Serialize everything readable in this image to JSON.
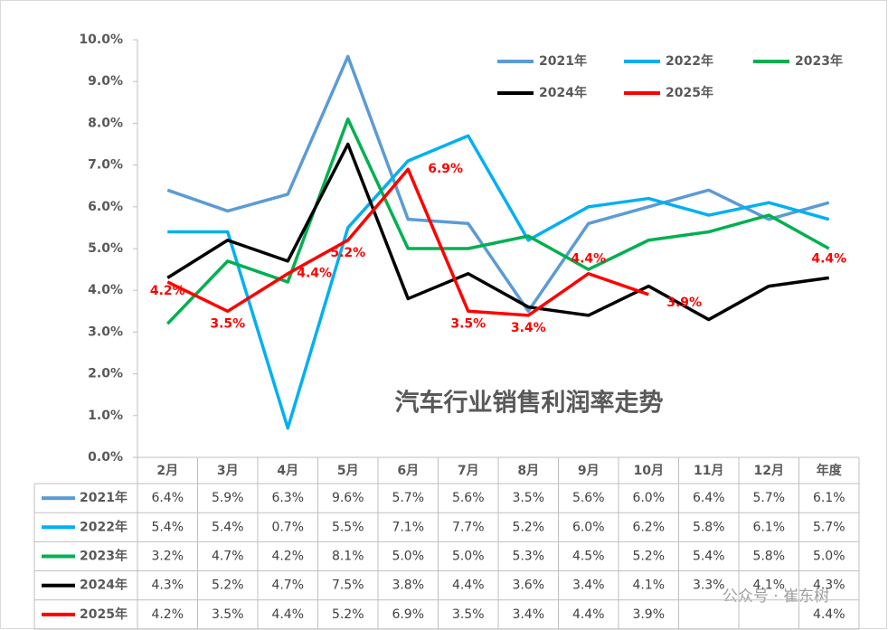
{
  "chart_data": {
    "type": "line",
    "title": "汽车行业销售利润率走势",
    "watermark": "公众号 · 崔东树",
    "categories": [
      "2月",
      "3月",
      "4月",
      "5月",
      "6月",
      "7月",
      "8月",
      "9月",
      "10月",
      "11月",
      "12月",
      "年度"
    ],
    "ylim": [
      0,
      10
    ],
    "yticks": [
      {
        "value": 0,
        "label": "0.0%"
      },
      {
        "value": 1,
        "label": "1.0%"
      },
      {
        "value": 2,
        "label": "2.0%"
      },
      {
        "value": 3,
        "label": "3.0%"
      },
      {
        "value": 4,
        "label": "4.0%"
      },
      {
        "value": 5,
        "label": "5.0%"
      },
      {
        "value": 6,
        "label": "6.0%"
      },
      {
        "value": 7,
        "label": "7.0%"
      },
      {
        "value": 8,
        "label": "8.0%"
      },
      {
        "value": 9,
        "label": "9.0%"
      },
      {
        "value": 10,
        "label": "10.0%"
      }
    ],
    "series": [
      {
        "name": "2021年",
        "color": "#5b9bd5",
        "values": [
          6.4,
          5.9,
          6.3,
          9.6,
          5.7,
          5.6,
          3.5,
          5.6,
          6.0,
          6.4,
          5.7,
          6.1
        ],
        "value_labels": [
          "6.4%",
          "5.9%",
          "6.3%",
          "9.6%",
          "5.7%",
          "5.6%",
          "3.5%",
          "5.6%",
          "6.0%",
          "6.4%",
          "5.7%",
          "6.1%"
        ]
      },
      {
        "name": "2022年",
        "color": "#00b0f0",
        "values": [
          5.4,
          5.4,
          0.7,
          5.5,
          7.1,
          7.7,
          5.2,
          6.0,
          6.2,
          5.8,
          6.1,
          5.7
        ],
        "value_labels": [
          "5.4%",
          "5.4%",
          "0.7%",
          "5.5%",
          "7.1%",
          "7.7%",
          "5.2%",
          "6.0%",
          "6.2%",
          "5.8%",
          "6.1%",
          "5.7%"
        ]
      },
      {
        "name": "2023年",
        "color": "#00b050",
        "values": [
          3.2,
          4.7,
          4.2,
          8.1,
          5.0,
          5.0,
          5.3,
          4.5,
          5.2,
          5.4,
          5.8,
          5.0
        ],
        "value_labels": [
          "3.2%",
          "4.7%",
          "4.2%",
          "8.1%",
          "5.0%",
          "5.0%",
          "5.3%",
          "4.5%",
          "5.2%",
          "5.4%",
          "5.8%",
          "5.0%"
        ]
      },
      {
        "name": "2024年",
        "color": "#000000",
        "values": [
          4.3,
          5.2,
          4.7,
          7.5,
          3.8,
          4.4,
          3.6,
          3.4,
          4.1,
          3.3,
          4.1,
          4.3
        ],
        "value_labels": [
          "4.3%",
          "5.2%",
          "4.7%",
          "7.5%",
          "3.8%",
          "4.4%",
          "3.6%",
          "3.4%",
          "4.1%",
          "3.3%",
          "4.1%",
          "4.3%"
        ]
      },
      {
        "name": "2025年",
        "color": "#ff0000",
        "values": [
          4.2,
          3.5,
          4.4,
          5.2,
          6.9,
          3.5,
          3.4,
          4.4,
          3.9,
          null,
          null,
          4.4
        ],
        "value_labels": [
          "4.2%",
          "3.5%",
          "4.4%",
          "5.2%",
          "6.9%",
          "3.5%",
          "3.4%",
          "4.4%",
          "3.9%",
          null,
          null,
          "4.4%"
        ],
        "data_labels": true
      }
    ]
  }
}
